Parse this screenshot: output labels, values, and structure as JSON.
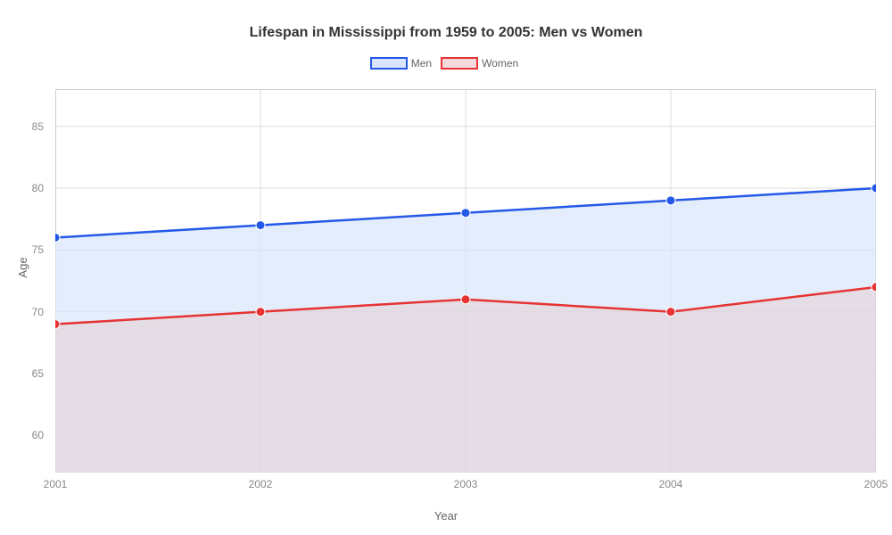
{
  "chart": {
    "type": "line-area",
    "title": "Lifespan in Mississippi from 1959 to 2005: Men vs Women",
    "title_fontsize": 16,
    "title_color": "#333333",
    "xlabel": "Year",
    "ylabel": "Age",
    "label_fontsize": 13,
    "label_color": "#666666",
    "tick_fontsize": 12,
    "tick_color": "#888888",
    "background_color": "#ffffff",
    "plot_border_color": "#dddddd",
    "grid_color": "#dddddd",
    "outer_border_color": "#cccccc",
    "xlim": [
      2001,
      2005
    ],
    "ylim": [
      57,
      88
    ],
    "x_ticks": [
      2001,
      2002,
      2003,
      2004,
      2005
    ],
    "y_ticks": [
      60,
      65,
      70,
      75,
      80,
      85
    ],
    "x_categories": [
      "2001",
      "2002",
      "2003",
      "2004",
      "2005"
    ],
    "y_tick_labels": [
      "60",
      "65",
      "70",
      "75",
      "80",
      "85"
    ],
    "series": [
      {
        "name": "Men",
        "label": "Men",
        "x": [
          2001,
          2002,
          2003,
          2004,
          2005
        ],
        "y": [
          76,
          77,
          78,
          79,
          80
        ],
        "line_color": "#2458e7",
        "fill_color": "#d9e5fa",
        "fill_opacity": 0.7,
        "line_width": 2.5,
        "marker": "circle",
        "marker_size": 5,
        "marker_fill": "#2458e7",
        "marker_stroke": "#ffffff"
      },
      {
        "name": "Women",
        "label": "Women",
        "x": [
          2001,
          2002,
          2003,
          2004,
          2005
        ],
        "y": [
          69,
          70,
          71,
          70,
          72
        ],
        "line_color": "#e63333",
        "fill_color": "#e3cfd4",
        "fill_opacity": 0.55,
        "line_width": 2.5,
        "marker": "circle",
        "marker_size": 5,
        "marker_fill": "#e63333",
        "marker_stroke": "#ffffff"
      }
    ],
    "legend": {
      "position": "top-center",
      "items": [
        {
          "label": "Men",
          "border_color": "#2458e7",
          "fill_color": "#d9e5fa"
        },
        {
          "label": "Women",
          "border_color": "#e63333",
          "fill_color": "#f2dadc"
        }
      ]
    }
  }
}
